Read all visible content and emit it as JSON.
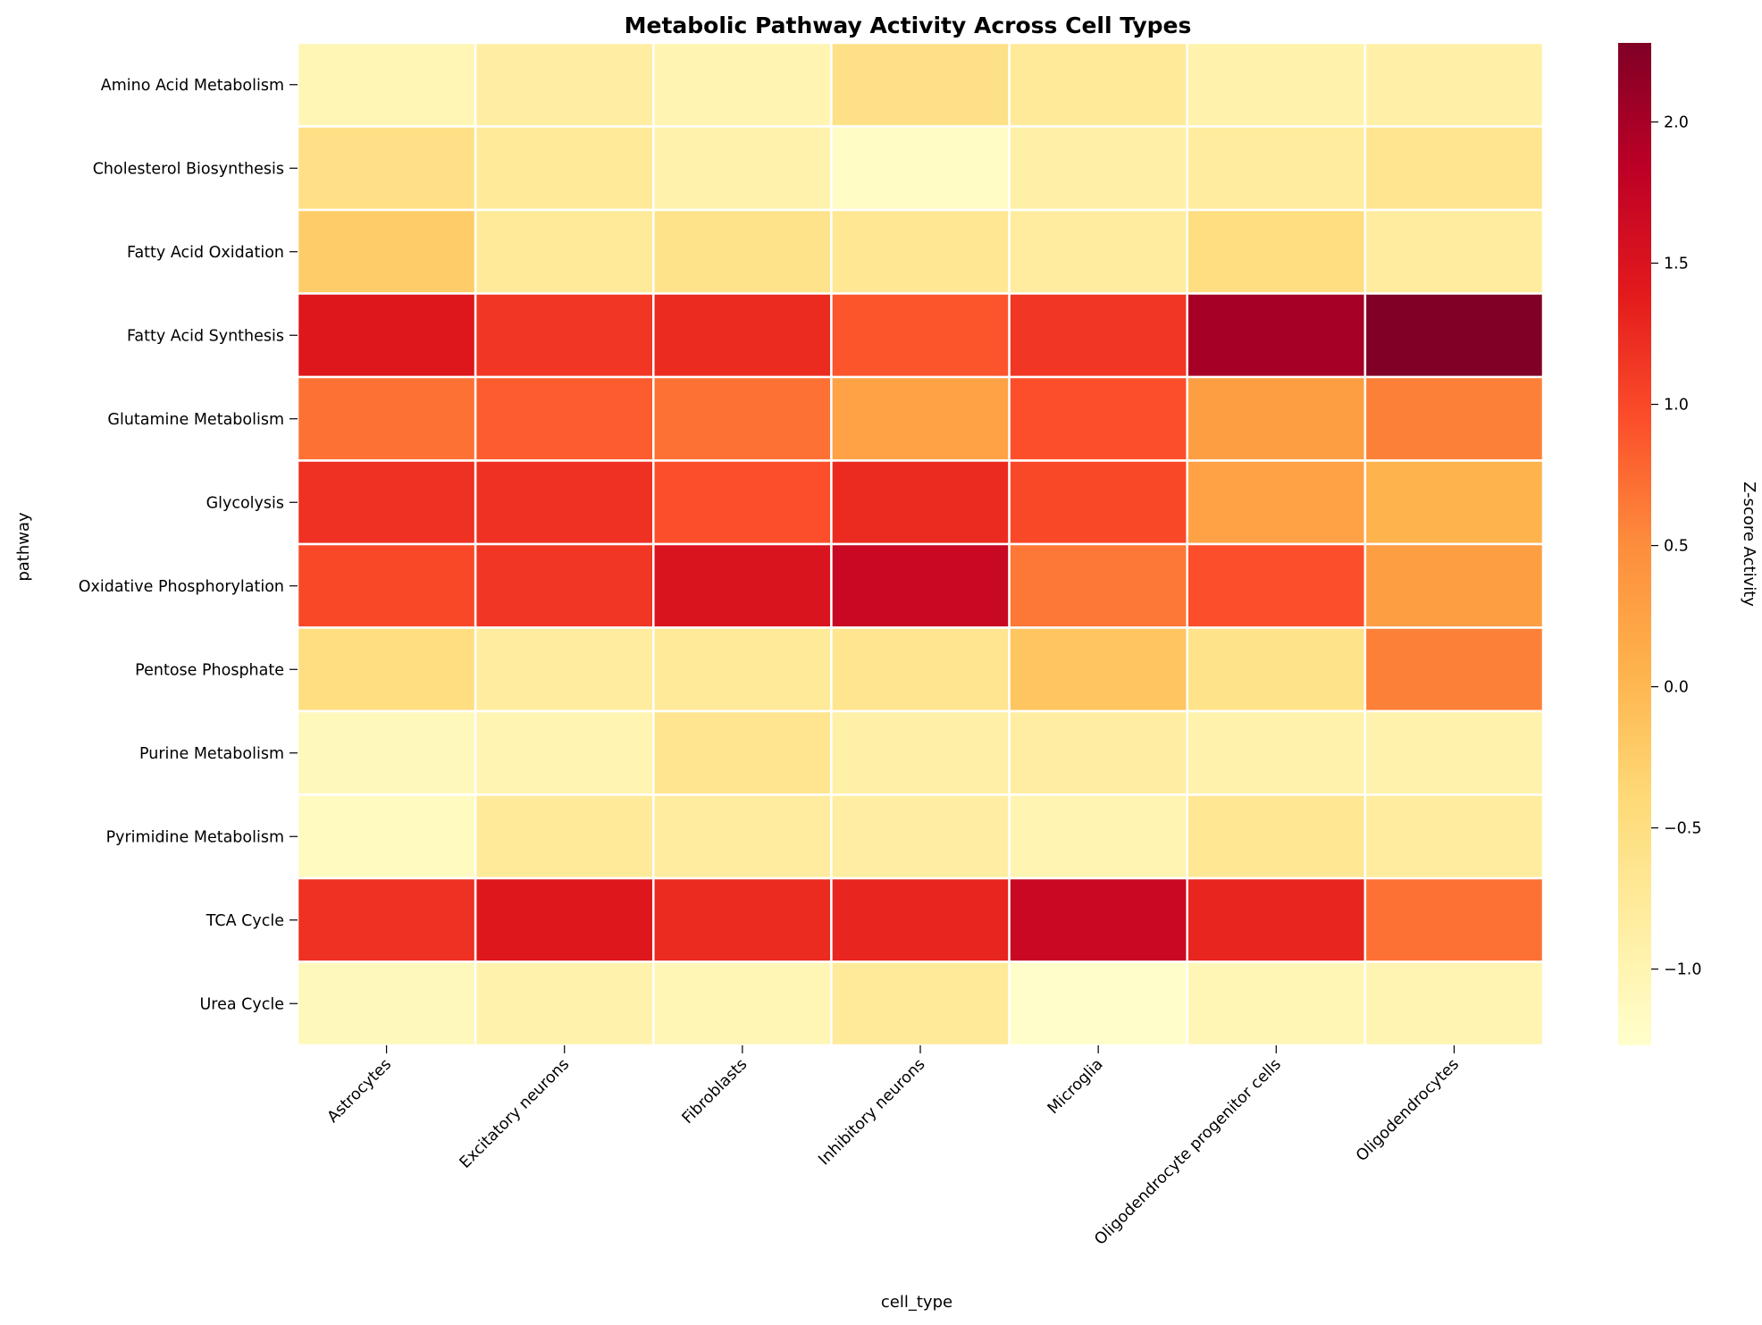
{
  "chart_data": {
    "type": "heatmap",
    "title": "Metabolic Pathway Activity Across Cell Types",
    "xlabel": "cell_type",
    "ylabel": "pathway",
    "colorbar_label": "Z-score Activity",
    "colormap": "YlOrRd",
    "vmin": -1.27,
    "vmax": 2.28,
    "colorbar_ticks": [
      -1.0,
      -0.5,
      0.0,
      0.5,
      1.0,
      1.5,
      2.0
    ],
    "colorbar_tick_labels": [
      "−1.0",
      "−0.5",
      "0.0",
      "0.5",
      "1.0",
      "1.5",
      "2.0"
    ],
    "cell_border_color": "#ffffff",
    "x_categories": [
      "Astrocytes",
      "Excitatory neurons",
      "Fibroblasts",
      "Inhibitory neurons",
      "Microglia",
      "Oligodendrocyte progenitor cells",
      "Oligodendrocytes"
    ],
    "y_categories": [
      "Amino Acid Metabolism",
      "Cholesterol Biosynthesis",
      "Fatty Acid Oxidation",
      "Fatty Acid Synthesis",
      "Glutamine Metabolism",
      "Glycolysis",
      "Oxidative Phosphorylation",
      "Pentose Phosphate",
      "Purine Metabolism",
      "Pyrimidine Metabolism",
      "TCA Cycle",
      "Urea Cycle"
    ],
    "values": [
      [
        -1.05,
        -0.85,
        -1.0,
        -0.55,
        -0.75,
        -0.95,
        -0.9
      ],
      [
        -0.55,
        -0.75,
        -0.95,
        -1.2,
        -0.9,
        -0.8,
        -0.65
      ],
      [
        -0.25,
        -0.75,
        -0.6,
        -0.7,
        -0.8,
        -0.5,
        -0.8
      ],
      [
        1.45,
        1.15,
        1.25,
        0.9,
        1.15,
        2.0,
        2.28
      ],
      [
        0.7,
        0.85,
        0.7,
        0.25,
        0.95,
        0.3,
        0.6
      ],
      [
        1.2,
        1.2,
        0.95,
        1.25,
        1.0,
        0.25,
        0.05
      ],
      [
        1.0,
        1.15,
        1.5,
        1.7,
        0.65,
        0.95,
        0.3
      ],
      [
        -0.5,
        -0.8,
        -0.75,
        -0.65,
        -0.15,
        -0.6,
        0.6
      ],
      [
        -1.1,
        -1.0,
        -0.65,
        -0.9,
        -0.85,
        -0.95,
        -0.95
      ],
      [
        -1.15,
        -0.75,
        -0.8,
        -0.85,
        -1.0,
        -0.7,
        -0.8
      ],
      [
        1.2,
        1.45,
        1.25,
        1.3,
        1.7,
        1.3,
        0.7
      ],
      [
        -1.1,
        -0.95,
        -1.05,
        -0.75,
        -1.25,
        -1.05,
        -1.0
      ]
    ]
  }
}
